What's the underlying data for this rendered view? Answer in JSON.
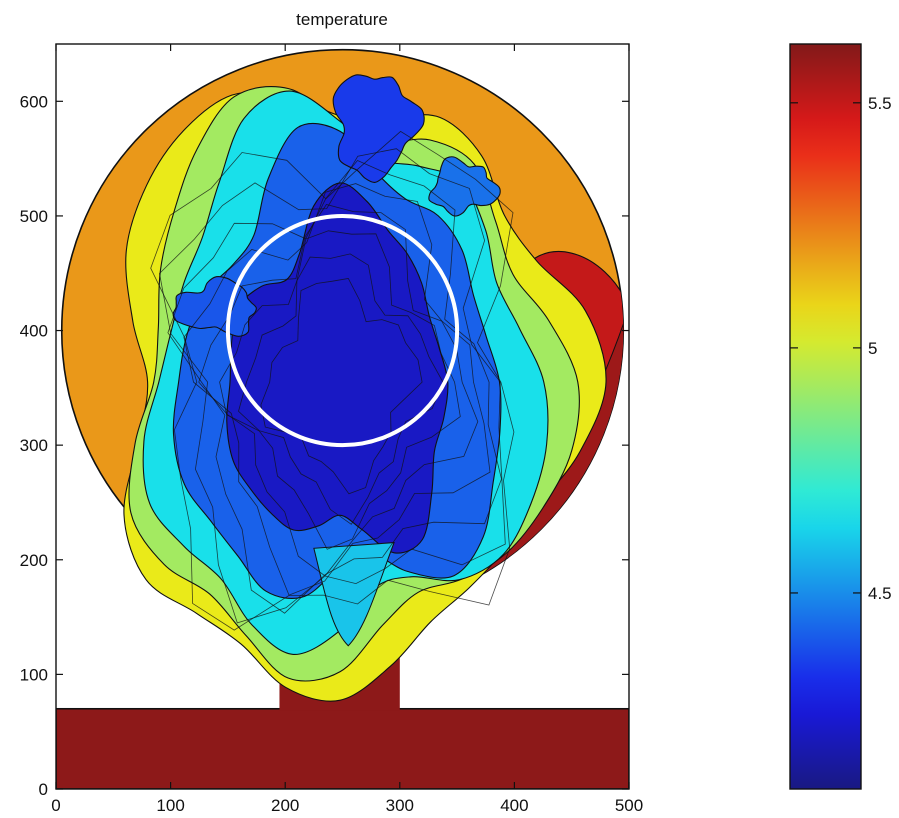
{
  "chart_data": {
    "type": "heatmap",
    "title": "temperature",
    "xlabel": "",
    "ylabel": "",
    "xlim": [
      0,
      500
    ],
    "ylim": [
      0,
      650
    ],
    "x_ticks": [
      0,
      100,
      200,
      300,
      400,
      500
    ],
    "y_ticks": [
      0,
      100,
      200,
      300,
      400,
      500,
      600
    ],
    "colormap": "jet",
    "colorbar": {
      "range": [
        4.1,
        5.62
      ],
      "ticks": [
        4.5,
        5,
        5.5
      ],
      "placement": "right"
    },
    "domain": {
      "channel": {
        "x": [
          0,
          500
        ],
        "y": [
          0,
          70
        ]
      },
      "neck": {
        "x": [
          195,
          300
        ],
        "y": [
          70,
          160
        ]
      },
      "disk": {
        "center": [
          250,
          400
        ],
        "radius": 245
      }
    },
    "marker_circle": {
      "center": [
        250,
        400
      ],
      "radius": 100,
      "color": "#ffffff"
    },
    "regions": [
      {
        "name": "channel",
        "value": 5.6
      },
      {
        "name": "disk-ambient",
        "value": 5.2
      },
      {
        "name": "hot-plume",
        "value": 5.5
      },
      {
        "name": "mixing-front",
        "value": 5.0
      },
      {
        "name": "cold-core",
        "value": 4.4
      },
      {
        "name": "coldest-core",
        "value": 4.2
      }
    ],
    "grid": false,
    "legend": "none"
  }
}
